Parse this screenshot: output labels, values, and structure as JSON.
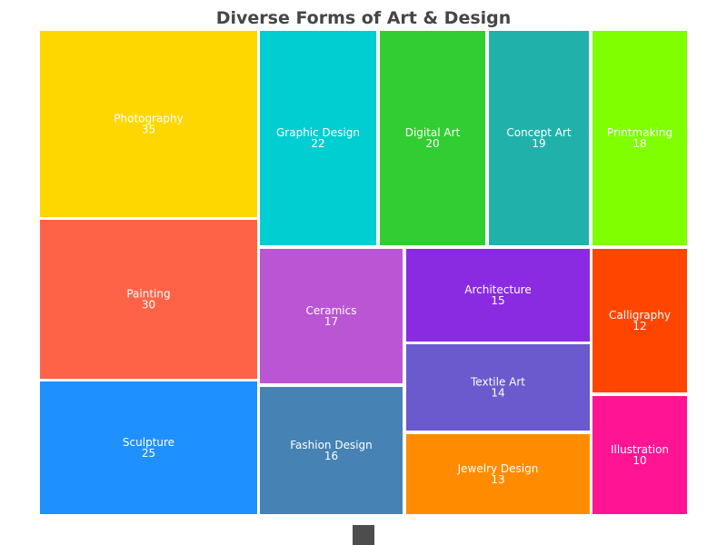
{
  "chart_data": {
    "type": "treemap",
    "title": "Diverse Forms of Art & Design",
    "items": [
      {
        "name": "Photography",
        "value": 35,
        "color": "#FFD700"
      },
      {
        "name": "Painting",
        "value": 30,
        "color": "#FF6347"
      },
      {
        "name": "Sculpture",
        "value": 25,
        "color": "#1E90FF"
      },
      {
        "name": "Graphic Design",
        "value": 22,
        "color": "#00CED1"
      },
      {
        "name": "Digital Art",
        "value": 20,
        "color": "#32CD32"
      },
      {
        "name": "Concept Art",
        "value": 19,
        "color": "#20B2AA"
      },
      {
        "name": "Printmaking",
        "value": 18,
        "color": "#7FFF00"
      },
      {
        "name": "Ceramics",
        "value": 17,
        "color": "#BA55D3"
      },
      {
        "name": "Fashion Design",
        "value": 16,
        "color": "#4682B4"
      },
      {
        "name": "Architecture",
        "value": 15,
        "color": "#8A2BE2"
      },
      {
        "name": "Textile Art",
        "value": 14,
        "color": "#6A5ACD"
      },
      {
        "name": "Jewelry Design",
        "value": 13,
        "color": "#FF8C00"
      },
      {
        "name": "Calligraphy",
        "value": 12,
        "color": "#FF4500"
      },
      {
        "name": "Illustration",
        "value": 10,
        "color": "#FF1493"
      }
    ]
  },
  "controls": {
    "zoom_color": "#4d4d4d"
  }
}
